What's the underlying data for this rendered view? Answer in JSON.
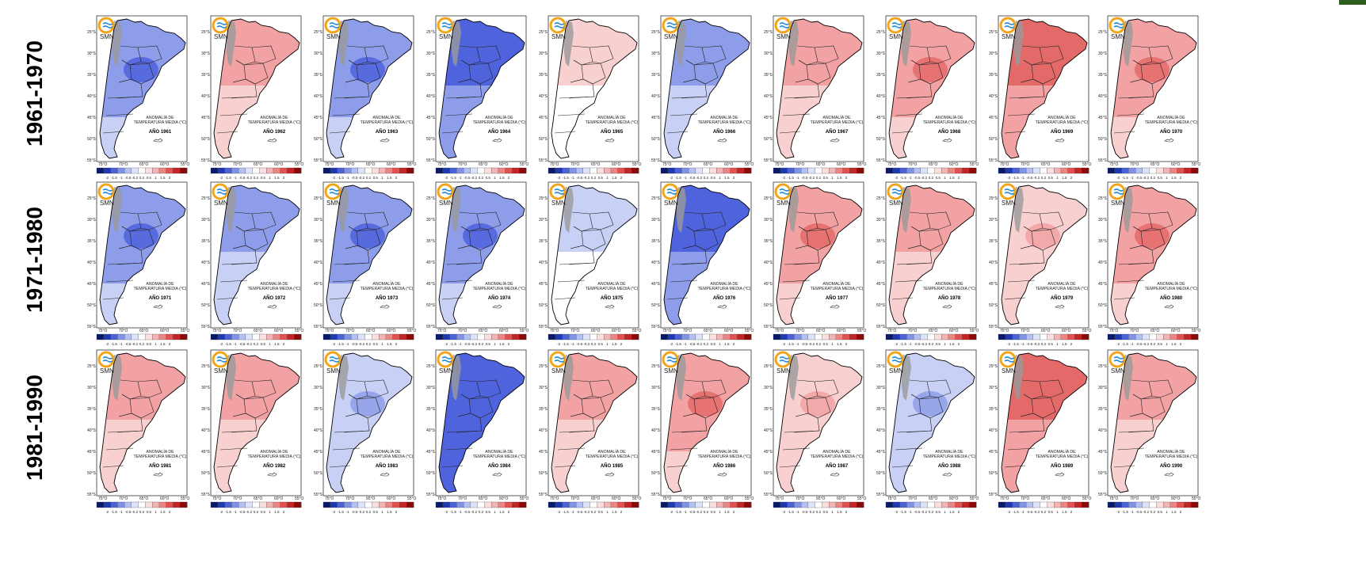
{
  "rows": [
    {
      "label": "1961-1970",
      "panels": [
        {
          "year": "AÑO 1961",
          "anomaly": -0.4
        },
        {
          "year": "AÑO 1962",
          "anomaly": 0.3
        },
        {
          "year": "AÑO 1963",
          "anomaly": -0.4
        },
        {
          "year": "AÑO 1964",
          "anomaly": -0.6
        },
        {
          "year": "AÑO 1965",
          "anomaly": 0.1
        },
        {
          "year": "AÑO 1966",
          "anomaly": -0.3
        },
        {
          "year": "AÑO 1967",
          "anomaly": 0.3
        },
        {
          "year": "AÑO 1968",
          "anomaly": 0.4
        },
        {
          "year": "AÑO 1969",
          "anomaly": 0.5
        },
        {
          "year": "AÑO 1970",
          "anomaly": 0.4
        }
      ]
    },
    {
      "label": "1971-1980",
      "panels": [
        {
          "year": "AÑO 1971",
          "anomaly": -0.4
        },
        {
          "year": "AÑO 1972",
          "anomaly": -0.3
        },
        {
          "year": "AÑO 1973",
          "anomaly": -0.4
        },
        {
          "year": "AÑO 1974",
          "anomaly": -0.4
        },
        {
          "year": "AÑO 1975",
          "anomaly": -0.1
        },
        {
          "year": "AÑO 1976",
          "anomaly": -0.6
        },
        {
          "year": "AÑO 1977",
          "anomaly": 0.4
        },
        {
          "year": "AÑO 1978",
          "anomaly": 0.3
        },
        {
          "year": "AÑO 1979",
          "anomaly": 0.2
        },
        {
          "year": "AÑO 1980",
          "anomaly": 0.4
        }
      ]
    },
    {
      "label": "1981-1990",
      "panels": [
        {
          "year": "AÑO 1981",
          "anomaly": 0.3
        },
        {
          "year": "AÑO 1982",
          "anomaly": 0.3
        },
        {
          "year": "AÑO 1983",
          "anomaly": -0.2
        },
        {
          "year": "AÑO 1984",
          "anomaly": -0.8
        },
        {
          "year": "AÑO 1985",
          "anomaly": 0.3
        },
        {
          "year": "AÑO 1986",
          "anomaly": 0.4
        },
        {
          "year": "AÑO 1987",
          "anomaly": 0.2
        },
        {
          "year": "AÑO 1988",
          "anomaly": -0.2
        },
        {
          "year": "AÑO 1989",
          "anomaly": 0.5
        },
        {
          "year": "AÑO 1990",
          "anomaly": 0.3
        }
      ]
    }
  ],
  "map_title_line1": "ANOMALÍA DE",
  "map_title_line2": "TEMPERATURA MEDIA (°C)",
  "logo_text": "SMN",
  "lat_labels": [
    "25°S",
    "30°S",
    "35°S",
    "40°S",
    "45°S",
    "50°S",
    "55°S"
  ],
  "lon_labels": [
    "75°O",
    "70°O",
    "65°O",
    "60°O",
    "55°O"
  ],
  "colorbar_ticks": [
    "-2",
    "-1.5",
    "-1",
    "-0.5",
    "-0.2",
    "0.2",
    "0.5",
    "1",
    "1.5",
    "2"
  ],
  "colorbar_colors": [
    "#0a1a6b",
    "#1f3ab0",
    "#4b63d6",
    "#8093e6",
    "#b4c0f2",
    "#dde3fa",
    "#ffffff",
    "#fbdede",
    "#f5b3b3",
    "#ee8585",
    "#e35050",
    "#c42424",
    "#8c0a0a"
  ],
  "palette": {
    "cold_strong": "#4f63dc",
    "cold_mid": "#8e9de9",
    "cold_light": "#c9d0f6",
    "warm_light": "#f9d0d0",
    "warm_mid": "#f2a2a2",
    "warm_strong": "#e46a6a",
    "andes": "#9a9a9a",
    "border": "#000000"
  }
}
